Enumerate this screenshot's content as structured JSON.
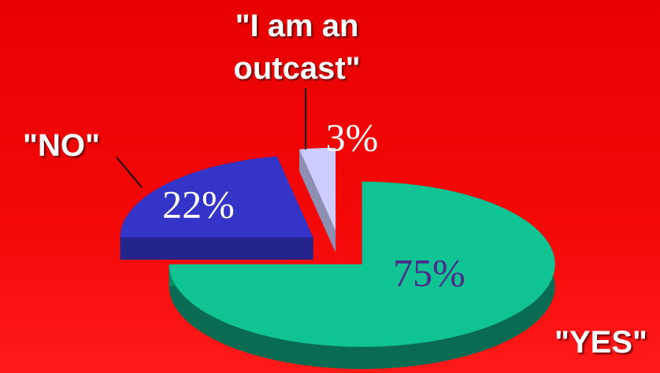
{
  "chart_data": {
    "type": "pie",
    "categories": [
      "\"YES\"",
      "\"NO\"",
      "\"I am an outcast\""
    ],
    "values": [
      75,
      22,
      3
    ],
    "value_labels": [
      "75%",
      "22%",
      "3%"
    ],
    "colors": [
      "#10c393",
      "#3434c8",
      "#ccccff"
    ]
  }
}
